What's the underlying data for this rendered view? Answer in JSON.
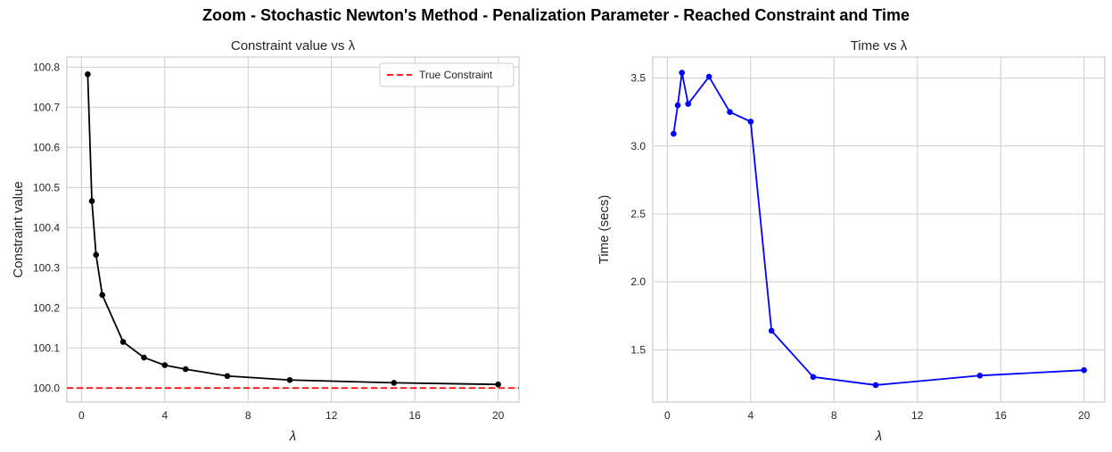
{
  "suptitle": "Zoom - Stochastic Newton's Method - Penalization Parameter - Reached Constraint and Time",
  "chart_data": [
    {
      "type": "line",
      "title": "Constraint value vs λ",
      "xlabel": "λ",
      "ylabel": "Constraint value",
      "x": [
        0.3,
        0.5,
        0.7,
        1,
        2,
        3,
        4,
        5,
        7,
        10,
        15,
        20
      ],
      "series": [
        {
          "values": [
            100.782,
            100.466,
            100.332,
            100.232,
            100.115,
            100.076,
            100.057,
            100.047,
            100.03,
            100.02,
            100.013,
            100.009
          ],
          "color": "#000000"
        }
      ],
      "reference_line": {
        "name": "True Constraint",
        "y": 100.0,
        "color": "#ff0000",
        "style": "dashed"
      },
      "xlim": [
        -0.7,
        21.0
      ],
      "ylim": [
        99.965,
        100.825
      ],
      "xticks": [
        0,
        4,
        8,
        12,
        16,
        20
      ],
      "yticks": [
        100.0,
        100.1,
        100.2,
        100.3,
        100.4,
        100.5,
        100.6,
        100.7,
        100.8
      ],
      "ytick_labels": [
        "100.0",
        "100.1",
        "100.2",
        "100.3",
        "100.4",
        "100.5",
        "100.6",
        "100.7",
        "100.8"
      ],
      "legend": "top-right",
      "grid": true
    },
    {
      "type": "line",
      "title": "Time vs λ",
      "xlabel": "λ",
      "ylabel": "Time (secs)",
      "x": [
        0.3,
        0.5,
        0.7,
        1,
        2,
        3,
        4,
        5,
        7,
        10,
        15,
        20
      ],
      "series": [
        {
          "values": [
            3.09,
            3.3,
            3.54,
            3.31,
            3.51,
            3.25,
            3.18,
            1.64,
            1.3,
            1.24,
            1.31,
            1.35
          ],
          "color": "#0000ff"
        }
      ],
      "xlim": [
        -0.7,
        21.0
      ],
      "ylim": [
        1.115,
        3.655
      ],
      "xticks": [
        0,
        4,
        8,
        12,
        16,
        20
      ],
      "yticks": [
        1.5,
        2.0,
        2.5,
        3.0,
        3.5
      ],
      "ytick_labels": [
        "1.5",
        "2.0",
        "2.5",
        "3.0",
        "3.5"
      ],
      "legend": "none",
      "grid": true
    }
  ]
}
